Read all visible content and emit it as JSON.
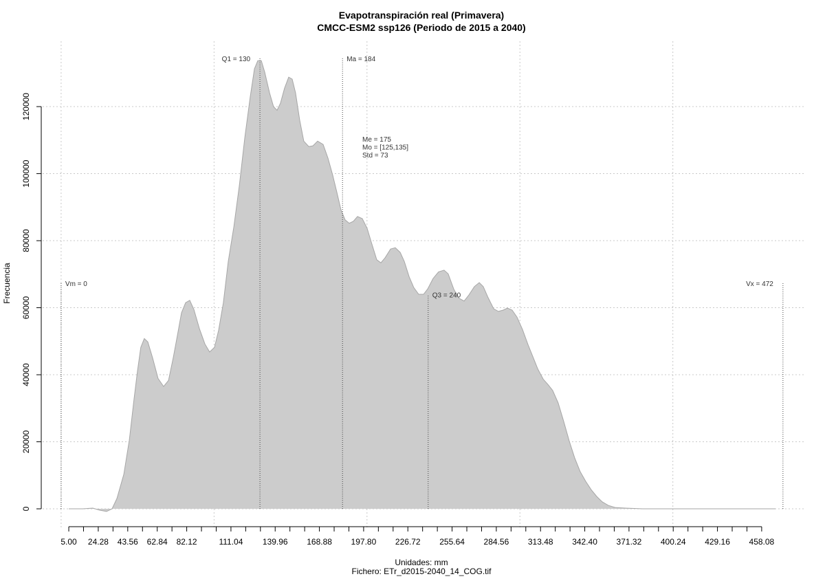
{
  "chart_data": {
    "type": "area",
    "title": "Evapotranspiración real (Primavera)",
    "subtitle": "CMCC-ESM2 ssp126 (Periodo de 2015 a 2040)",
    "x_label": "Unidades: mm",
    "caption": "Fichero: ETr_d2015-2040_14_COG.tif",
    "y_label": "Frecuencia",
    "color": "#cccccc",
    "edge_color": "#a6a6a6",
    "grid": true,
    "xlim": [
      -12.1,
      486
    ],
    "ylim": [
      -6150,
      139500
    ],
    "xticks": [
      {
        "value": 5.0,
        "label": "5.00"
      },
      {
        "value": 24.28,
        "label": "24.28"
      },
      {
        "value": 43.56,
        "label": "43.56"
      },
      {
        "value": 62.84,
        "label": "62.84"
      },
      {
        "value": 82.12,
        "label": "82.12"
      },
      {
        "value": 111.04,
        "label": "111.04"
      },
      {
        "value": 139.96,
        "label": "139.96"
      },
      {
        "value": 168.88,
        "label": "168.88"
      },
      {
        "value": 197.8,
        "label": "197.80"
      },
      {
        "value": 226.72,
        "label": "226.72"
      },
      {
        "value": 255.64,
        "label": "255.64"
      },
      {
        "value": 284.56,
        "label": "284.56"
      },
      {
        "value": 313.48,
        "label": "313.48"
      },
      {
        "value": 342.4,
        "label": "342.40"
      },
      {
        "value": 371.32,
        "label": "371.32"
      },
      {
        "value": 400.24,
        "label": "400.24"
      },
      {
        "value": 429.16,
        "label": "429.16"
      },
      {
        "value": 458.08,
        "label": "458.08"
      }
    ],
    "x_minor_ticks": [
      14.64,
      33.92,
      53.2,
      72.48,
      91.76,
      101.4,
      120.68,
      130.32,
      149.6,
      159.24,
      178.52,
      188.16,
      207.44,
      217.08,
      236.36,
      246.0,
      265.28,
      274.92,
      294.2,
      303.84,
      323.12,
      332.76,
      352.04,
      361.68,
      380.96,
      390.6,
      409.88,
      419.52,
      438.8,
      448.44
    ],
    "x_grid": [
      0,
      100,
      200,
      300,
      400
    ],
    "yticks": [
      0,
      20000,
      40000,
      60000,
      80000,
      100000,
      120000
    ],
    "x": [
      5.0,
      14.0,
      20.7,
      25.2,
      29.7,
      33.3,
      36.5,
      41.0,
      44.6,
      47.7,
      49.9,
      52.1,
      54.4,
      56.7,
      59.8,
      63.4,
      67.0,
      70.2,
      73.3,
      76.0,
      78.7,
      81.4,
      84.1,
      86.8,
      90.4,
      94.0,
      97.1,
      100.3,
      103.0,
      106.1,
      109.3,
      112.9,
      116.5,
      120.1,
      123.7,
      126.4,
      128.6,
      130.9,
      133.1,
      136.3,
      138.9,
      141.2,
      143.4,
      146.1,
      148.8,
      151.1,
      153.3,
      156.0,
      158.7,
      161.9,
      164.6,
      167.7,
      171.3,
      174.5,
      177.6,
      180.3,
      183.0,
      185.7,
      188.4,
      191.1,
      193.8,
      196.9,
      200.1,
      203.2,
      206.4,
      209.1,
      211.8,
      215.4,
      218.5,
      221.7,
      224.4,
      227.5,
      230.6,
      233.8,
      237.0,
      239.7,
      243.2,
      246.8,
      250.4,
      253.1,
      256.7,
      259.9,
      263.5,
      266.6,
      270.2,
      273.4,
      276.0,
      279.2,
      282.8,
      285.9,
      289.1,
      291.8,
      294.9,
      298.1,
      301.7,
      305.3,
      308.9,
      311.6,
      315.2,
      318.3,
      321.4,
      325.0,
      328.6,
      332.2,
      335.8,
      339.4,
      343.0,
      346.6,
      350.2,
      353.8,
      357.8,
      362.3,
      369.1,
      380.3,
      391.6,
      409.5,
      436.5,
      467.1
    ],
    "values": [
      0,
      0,
      200,
      -400,
      -800,
      0,
      3100,
      10300,
      20500,
      32800,
      41000,
      48200,
      50800,
      49800,
      45100,
      38900,
      36500,
      38300,
      45100,
      51700,
      58500,
      61500,
      62200,
      59500,
      53800,
      49200,
      46800,
      48200,
      53300,
      61500,
      73800,
      84100,
      96400,
      110800,
      123100,
      131300,
      133700,
      133700,
      130300,
      124100,
      120000,
      118900,
      121000,
      125500,
      128800,
      128200,
      124100,
      116000,
      109700,
      108100,
      108300,
      109700,
      108700,
      104600,
      99500,
      94400,
      89200,
      86200,
      85200,
      85800,
      87200,
      86600,
      83700,
      79000,
      74300,
      73400,
      74900,
      77500,
      77900,
      76500,
      73800,
      69300,
      66000,
      64000,
      64000,
      65600,
      68700,
      70700,
      71200,
      70100,
      65600,
      62900,
      62000,
      63800,
      66300,
      67500,
      66300,
      63000,
      59700,
      58900,
      59300,
      59900,
      59300,
      57200,
      53500,
      49000,
      44900,
      41800,
      38700,
      37100,
      35300,
      31600,
      26100,
      20300,
      15200,
      11100,
      8200,
      5700,
      3700,
      2100,
      1000,
      400,
      200,
      0,
      0,
      0,
      0,
      0
    ],
    "ref_lines": [
      {
        "label": "Vm = 0",
        "x": 0,
        "top": 67300
      },
      {
        "label": "Q1 = 130",
        "x": 130,
        "top": 134400
      },
      {
        "label": "Ma = 184",
        "x": 184,
        "top": 134400
      },
      {
        "label": "Q3 = 240",
        "x": 240,
        "top": 63900
      },
      {
        "label": "Vx = 472",
        "x": 472,
        "top": 67300
      }
    ],
    "stats": [
      "Me = 175",
      "Mo = [125,135]",
      "Std = 73"
    ]
  }
}
